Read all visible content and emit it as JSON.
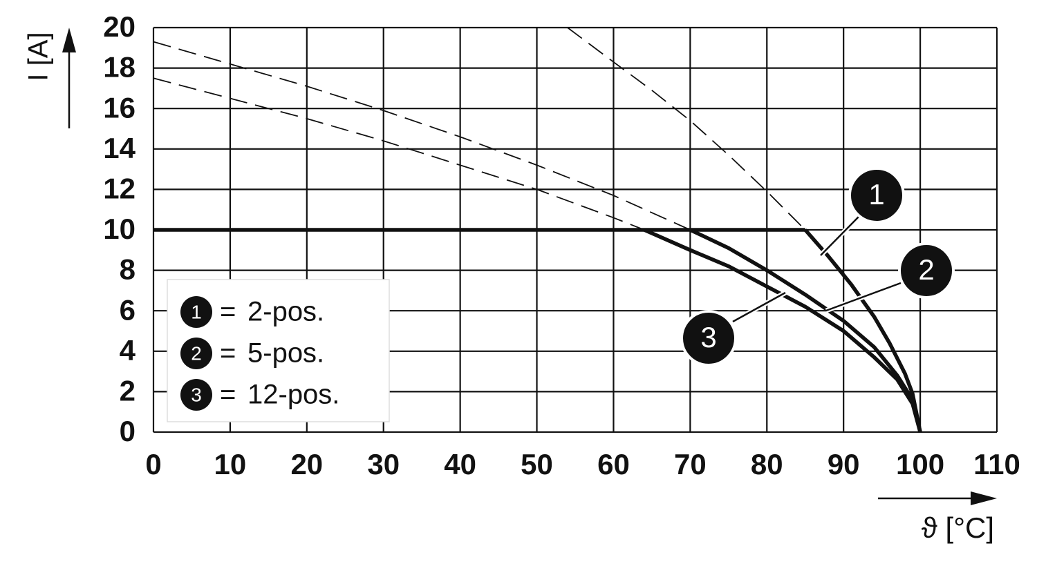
{
  "chart_data": {
    "type": "line",
    "x_label": "ϑ [°C]",
    "y_label": "I [A]",
    "xlim": [
      0,
      110
    ],
    "xticks": [
      0,
      10,
      20,
      30,
      40,
      50,
      60,
      70,
      80,
      90,
      100,
      110
    ],
    "ylim": [
      0,
      20
    ],
    "yticks": [
      0,
      2,
      4,
      6,
      8,
      10,
      12,
      14,
      16,
      18,
      20
    ],
    "grid": true,
    "color": "#111111",
    "legend_separator": "=",
    "rated_line": {
      "x": [
        0,
        85
      ],
      "values": [
        10,
        10
      ]
    },
    "series": [
      {
        "name": "2-pos.",
        "marker": "1",
        "x": [
          54,
          60,
          65,
          70,
          75,
          80,
          85,
          88,
          91,
          94,
          96,
          98,
          99,
          100
        ],
        "values": [
          20,
          18.3,
          16.9,
          15.4,
          13.7,
          11.9,
          10,
          8.7,
          7.3,
          5.7,
          4.4,
          2.9,
          1.9,
          0
        ]
      },
      {
        "name": "5-pos.",
        "marker": "2",
        "x": [
          0,
          10,
          20,
          30,
          40,
          50,
          60,
          70,
          75,
          80,
          85,
          90,
          94,
          97,
          99,
          100
        ],
        "values": [
          19.3,
          18.2,
          17.1,
          15.9,
          14.6,
          13.2,
          11.7,
          10,
          9.1,
          8.0,
          6.8,
          5.5,
          4.2,
          2.8,
          1.6,
          0
        ]
      },
      {
        "name": "12-pos.",
        "marker": "3",
        "x": [
          0,
          10,
          20,
          30,
          40,
          50,
          60,
          64,
          70,
          75,
          80,
          85,
          90,
          94,
          97,
          99,
          100
        ],
        "values": [
          17.5,
          16.5,
          15.5,
          14.4,
          13.2,
          12.0,
          10.6,
          10,
          9.0,
          8.2,
          7.2,
          6.2,
          5.0,
          3.7,
          2.6,
          1.4,
          0
        ]
      }
    ]
  }
}
